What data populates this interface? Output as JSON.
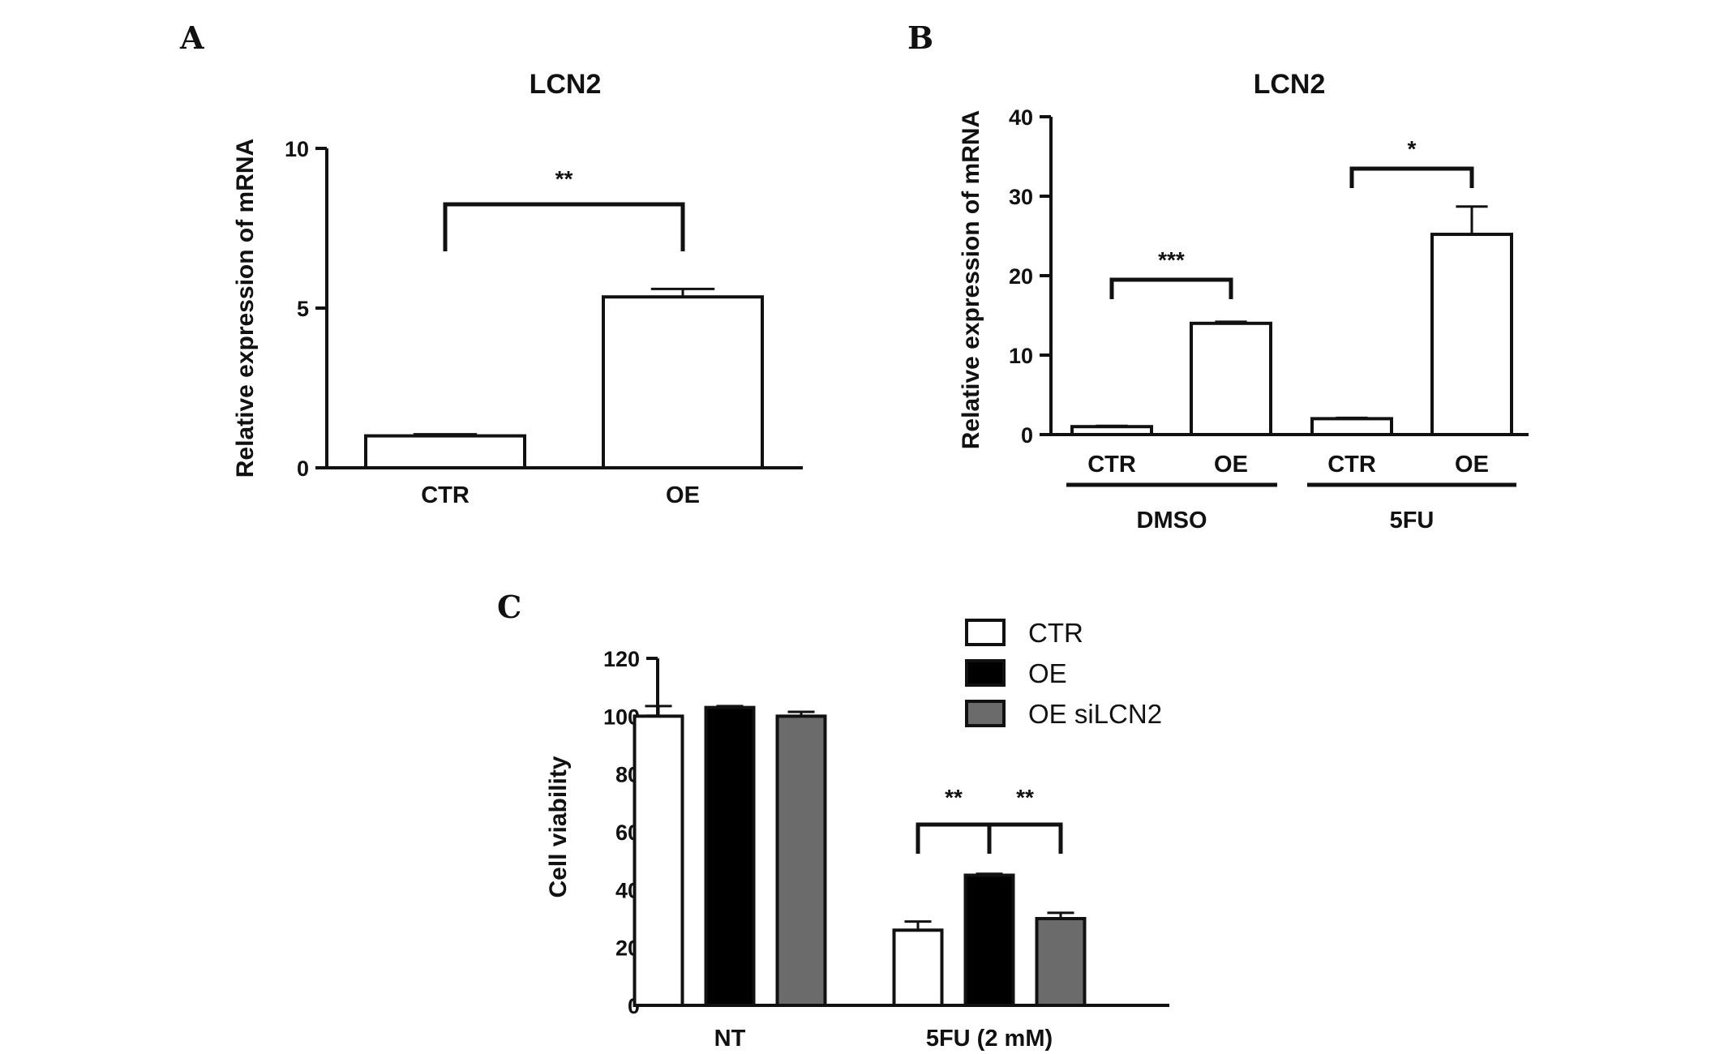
{
  "chart_data": [
    {
      "panel": "A",
      "type": "bar",
      "title": "LCN2",
      "ylabel": "Relative expression of mRNA",
      "xlabel": "",
      "ylim": [
        0,
        10
      ],
      "yticks": [
        0,
        5,
        10
      ],
      "categories": [
        "CTR",
        "OE"
      ],
      "values": [
        1.0,
        5.35
      ],
      "errors": [
        0.05,
        0.25
      ],
      "bar_colors": [
        "#ffffff",
        "#ffffff"
      ],
      "significance": [
        {
          "from": 0,
          "to": 1,
          "label": "**"
        }
      ]
    },
    {
      "panel": "B",
      "type": "bar",
      "title": "LCN2",
      "ylabel": "Relative expression of mRNA",
      "xlabel": "",
      "ylim": [
        0,
        40
      ],
      "yticks": [
        0,
        10,
        20,
        30,
        40
      ],
      "categories": [
        "CTR",
        "OE",
        "CTR",
        "OE"
      ],
      "groups": [
        {
          "label": "DMSO",
          "members": [
            0,
            1
          ]
        },
        {
          "label": "5FU",
          "members": [
            2,
            3
          ]
        }
      ],
      "values": [
        1.0,
        14.0,
        2.0,
        25.2
      ],
      "errors": [
        0.1,
        0.2,
        0.1,
        3.5
      ],
      "bar_colors": [
        "#ffffff",
        "#ffffff",
        "#ffffff",
        "#ffffff"
      ],
      "significance": [
        {
          "from": 0,
          "to": 1,
          "label": "***"
        },
        {
          "from": 2,
          "to": 3,
          "label": "*"
        }
      ]
    },
    {
      "panel": "C",
      "type": "bar",
      "title": "",
      "ylabel": "Cell viability",
      "xlabel": "",
      "ylim": [
        0,
        120
      ],
      "yticks": [
        0,
        20,
        40,
        60,
        80,
        100,
        120
      ],
      "categories": [
        "NT",
        "5FU (2 mM)"
      ],
      "series": [
        {
          "name": "CTR",
          "color": "#ffffff",
          "values": [
            100,
            26
          ],
          "errors": [
            3.5,
            3
          ]
        },
        {
          "name": "OE",
          "color": "#000000",
          "values": [
            103,
            45
          ],
          "errors": [
            0.5,
            0.5
          ]
        },
        {
          "name": "OE siLCN2",
          "color": "#6b6b6b",
          "values": [
            100,
            30
          ],
          "errors": [
            1.5,
            2
          ]
        }
      ],
      "legend_position": "top-right",
      "significance": [
        {
          "category": 1,
          "from": 0,
          "to": 1,
          "label": "**"
        },
        {
          "category": 1,
          "from": 1,
          "to": 2,
          "label": "**"
        }
      ]
    }
  ]
}
